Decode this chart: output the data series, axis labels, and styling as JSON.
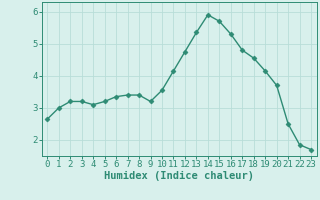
{
  "x": [
    0,
    1,
    2,
    3,
    4,
    5,
    6,
    7,
    8,
    9,
    10,
    11,
    12,
    13,
    14,
    15,
    16,
    17,
    18,
    19,
    20,
    21,
    22,
    23
  ],
  "y": [
    2.65,
    3.0,
    3.2,
    3.2,
    3.1,
    3.2,
    3.35,
    3.4,
    3.4,
    3.2,
    3.55,
    4.15,
    4.75,
    5.35,
    5.9,
    5.7,
    5.3,
    4.8,
    4.55,
    4.15,
    3.7,
    2.5,
    1.85,
    1.7
  ],
  "line_color": "#2e8b74",
  "marker": "D",
  "marker_size": 2.5,
  "bg_color": "#d8f0ec",
  "grid_color": "#b8ddd8",
  "xlabel": "Humidex (Indice chaleur)",
  "ylim": [
    1.5,
    6.3
  ],
  "xlim": [
    -0.5,
    23.5
  ],
  "yticks": [
    2,
    3,
    4,
    5,
    6
  ],
  "xticks": [
    0,
    1,
    2,
    3,
    4,
    5,
    6,
    7,
    8,
    9,
    10,
    11,
    12,
    13,
    14,
    15,
    16,
    17,
    18,
    19,
    20,
    21,
    22,
    23
  ],
  "xlabel_fontsize": 7.5,
  "tick_fontsize": 6.5,
  "line_width": 1.0,
  "axis_color": "#2e8b74",
  "spine_color": "#2e8b74"
}
